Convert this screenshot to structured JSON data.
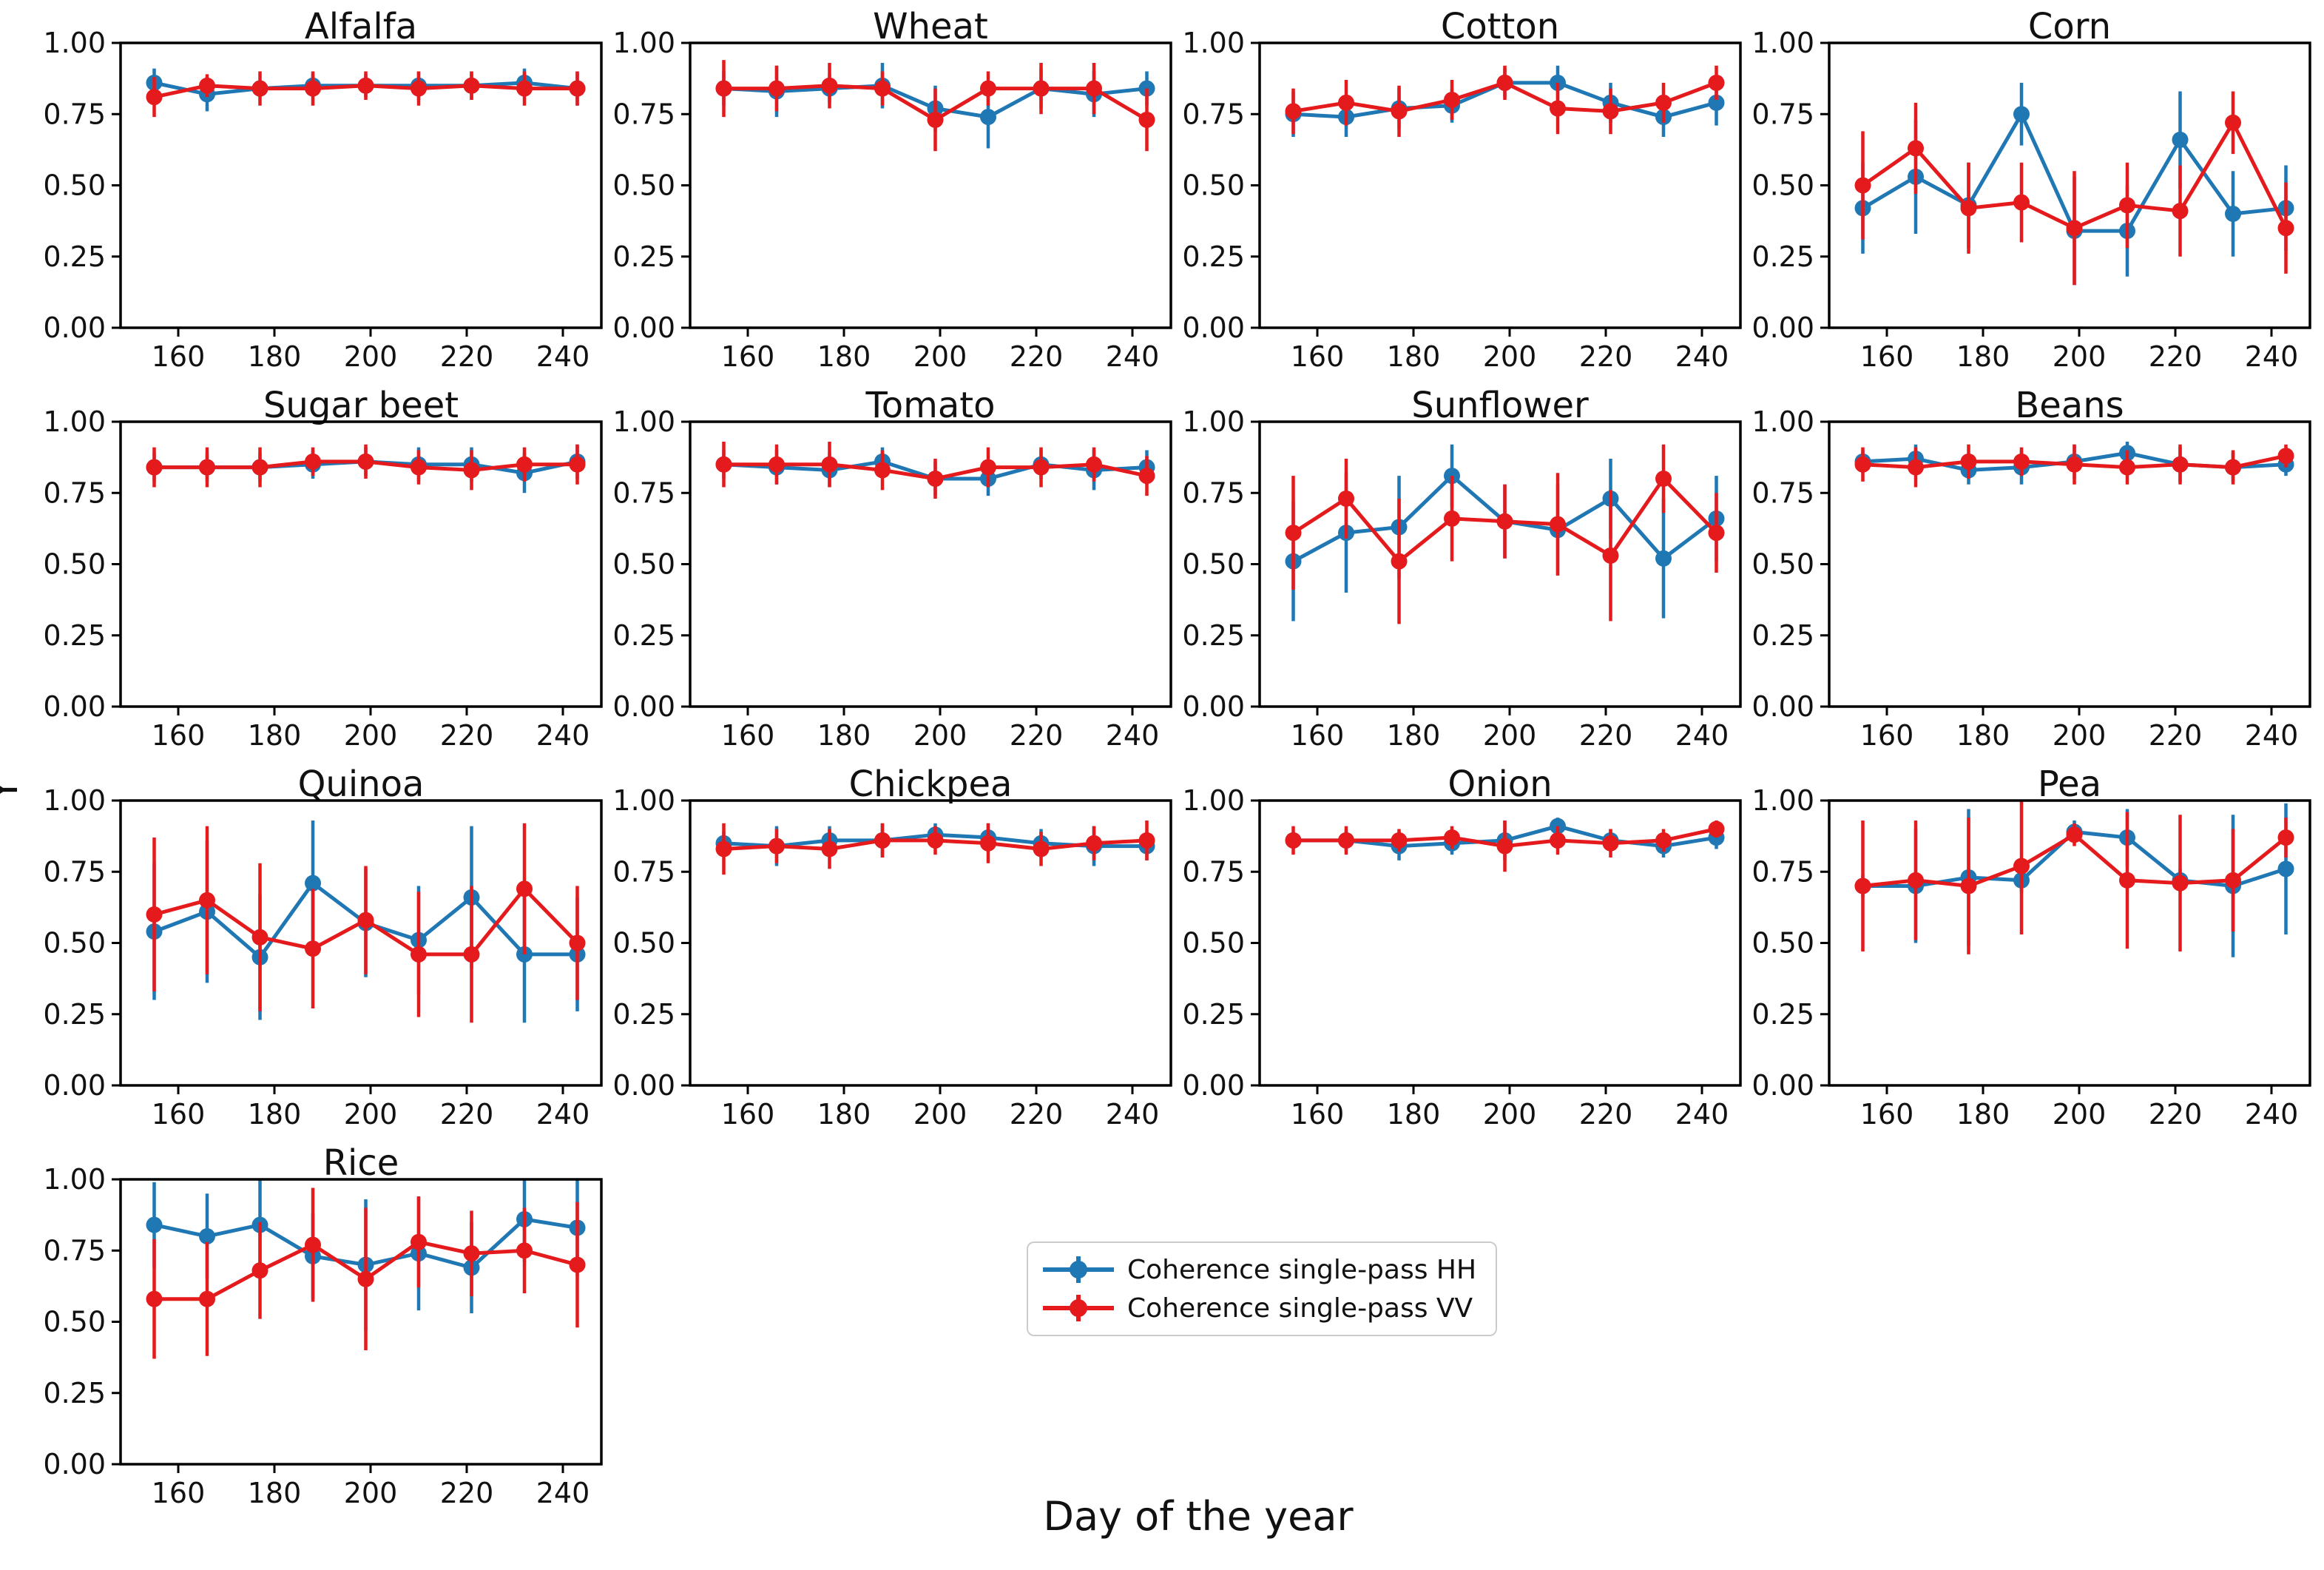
{
  "figure": {
    "xlabel": "Day of the year",
    "ylabel": "Y",
    "background": "#ffffff",
    "spine_color": "#000000",
    "legend": {
      "items": [
        {
          "key": "hh",
          "label": "Coherence single-pass HH",
          "color": "#1f77b4"
        },
        {
          "key": "vv",
          "label": "Coherence single-pass VV",
          "color": "#e41a1c"
        }
      ]
    }
  },
  "chart_data": {
    "type": "line",
    "x": [
      155,
      166,
      177,
      188,
      199,
      210,
      221,
      232,
      243
    ],
    "xlim": [
      148,
      248
    ],
    "ylim": [
      0,
      1
    ],
    "x_ticks": [
      160,
      180,
      200,
      220,
      240
    ],
    "y_ticks": [
      0.0,
      0.25,
      0.5,
      0.75,
      1.0
    ],
    "y_tick_labels": [
      "0.00",
      "0.25",
      "0.50",
      "0.75",
      "1.00"
    ],
    "grid": false,
    "legend_position": "below-figure-center",
    "series_names": [
      "Coherence single-pass HH",
      "Coherence single-pass VV"
    ],
    "subplots": [
      {
        "title": "Alfalfa",
        "hh": {
          "values": [
            0.86,
            0.82,
            0.84,
            0.85,
            0.85,
            0.85,
            0.85,
            0.86,
            0.84
          ],
          "errors": [
            0.05,
            0.06,
            0.03,
            0.04,
            0.04,
            0.05,
            0.05,
            0.05,
            0.06
          ]
        },
        "vv": {
          "values": [
            0.81,
            0.85,
            0.84,
            0.84,
            0.85,
            0.84,
            0.85,
            0.84,
            0.84
          ],
          "errors": [
            0.07,
            0.04,
            0.06,
            0.06,
            0.05,
            0.06,
            0.05,
            0.06,
            0.06
          ]
        }
      },
      {
        "title": "Wheat",
        "hh": {
          "values": [
            0.84,
            0.83,
            0.84,
            0.85,
            0.77,
            0.74,
            0.84,
            0.82,
            0.84
          ],
          "errors": [
            0.06,
            0.09,
            0.05,
            0.08,
            0.08,
            0.11,
            0.07,
            0.08,
            0.06
          ]
        },
        "vv": {
          "values": [
            0.84,
            0.84,
            0.85,
            0.84,
            0.73,
            0.84,
            0.84,
            0.84,
            0.73
          ],
          "errors": [
            0.1,
            0.08,
            0.08,
            0.06,
            0.11,
            0.06,
            0.09,
            0.09,
            0.11
          ]
        }
      },
      {
        "title": "Cotton",
        "hh": {
          "values": [
            0.75,
            0.74,
            0.77,
            0.78,
            0.86,
            0.86,
            0.79,
            0.74,
            0.79
          ],
          "errors": [
            0.08,
            0.07,
            0.07,
            0.06,
            0.05,
            0.06,
            0.07,
            0.07,
            0.08
          ]
        },
        "vv": {
          "values": [
            0.76,
            0.79,
            0.76,
            0.8,
            0.86,
            0.77,
            0.76,
            0.79,
            0.86
          ],
          "errors": [
            0.08,
            0.08,
            0.09,
            0.07,
            0.06,
            0.09,
            0.08,
            0.07,
            0.06
          ]
        }
      },
      {
        "title": "Corn",
        "hh": {
          "values": [
            0.42,
            0.53,
            0.43,
            0.75,
            0.34,
            0.34,
            0.66,
            0.4,
            0.42
          ],
          "errors": [
            0.16,
            0.2,
            0.15,
            0.11,
            0.19,
            0.16,
            0.17,
            0.15,
            0.15
          ]
        },
        "vv": {
          "values": [
            0.5,
            0.63,
            0.42,
            0.44,
            0.35,
            0.43,
            0.41,
            0.72,
            0.35
          ],
          "errors": [
            0.19,
            0.16,
            0.16,
            0.14,
            0.2,
            0.15,
            0.16,
            0.11,
            0.16
          ]
        }
      },
      {
        "title": "Sugar beet",
        "hh": {
          "values": [
            0.84,
            0.84,
            0.84,
            0.85,
            0.86,
            0.85,
            0.85,
            0.82,
            0.86
          ],
          "errors": [
            0.05,
            0.05,
            0.05,
            0.05,
            0.05,
            0.06,
            0.06,
            0.07,
            0.06
          ]
        },
        "vv": {
          "values": [
            0.84,
            0.84,
            0.84,
            0.86,
            0.86,
            0.84,
            0.83,
            0.85,
            0.85
          ],
          "errors": [
            0.07,
            0.07,
            0.07,
            0.05,
            0.06,
            0.06,
            0.07,
            0.06,
            0.07
          ]
        }
      },
      {
        "title": "Tomato",
        "hh": {
          "values": [
            0.85,
            0.84,
            0.83,
            0.86,
            0.8,
            0.8,
            0.85,
            0.83,
            0.84
          ],
          "errors": [
            0.05,
            0.06,
            0.06,
            0.05,
            0.06,
            0.06,
            0.05,
            0.07,
            0.06
          ]
        },
        "vv": {
          "values": [
            0.85,
            0.85,
            0.85,
            0.83,
            0.8,
            0.84,
            0.84,
            0.85,
            0.81
          ],
          "errors": [
            0.08,
            0.07,
            0.08,
            0.07,
            0.07,
            0.07,
            0.07,
            0.06,
            0.07
          ]
        }
      },
      {
        "title": "Sunflower",
        "hh": {
          "values": [
            0.51,
            0.61,
            0.63,
            0.81,
            0.65,
            0.62,
            0.73,
            0.52,
            0.66
          ],
          "errors": [
            0.21,
            0.21,
            0.18,
            0.11,
            0.13,
            0.16,
            0.14,
            0.21,
            0.15
          ]
        },
        "vv": {
          "values": [
            0.61,
            0.73,
            0.51,
            0.66,
            0.65,
            0.64,
            0.53,
            0.8,
            0.61
          ],
          "errors": [
            0.2,
            0.14,
            0.22,
            0.15,
            0.13,
            0.18,
            0.23,
            0.12,
            0.14
          ]
        }
      },
      {
        "title": "Beans",
        "hh": {
          "values": [
            0.86,
            0.87,
            0.83,
            0.84,
            0.86,
            0.89,
            0.85,
            0.84,
            0.85
          ],
          "errors": [
            0.04,
            0.05,
            0.05,
            0.06,
            0.06,
            0.04,
            0.06,
            0.05,
            0.04
          ]
        },
        "vv": {
          "values": [
            0.85,
            0.84,
            0.86,
            0.86,
            0.85,
            0.84,
            0.85,
            0.84,
            0.88
          ],
          "errors": [
            0.06,
            0.07,
            0.06,
            0.05,
            0.07,
            0.06,
            0.07,
            0.06,
            0.04
          ]
        }
      },
      {
        "title": "Quinoa",
        "hh": {
          "values": [
            0.54,
            0.61,
            0.45,
            0.71,
            0.57,
            0.51,
            0.66,
            0.46,
            0.46
          ],
          "errors": [
            0.24,
            0.25,
            0.22,
            0.22,
            0.19,
            0.19,
            0.25,
            0.24,
            0.2
          ]
        },
        "vv": {
          "values": [
            0.6,
            0.65,
            0.52,
            0.48,
            0.58,
            0.46,
            0.46,
            0.69,
            0.5
          ],
          "errors": [
            0.27,
            0.26,
            0.26,
            0.21,
            0.19,
            0.22,
            0.24,
            0.23,
            0.2
          ]
        }
      },
      {
        "title": "Chickpea",
        "hh": {
          "values": [
            0.85,
            0.84,
            0.86,
            0.86,
            0.88,
            0.87,
            0.85,
            0.84,
            0.84
          ],
          "errors": [
            0.04,
            0.07,
            0.05,
            0.06,
            0.04,
            0.05,
            0.05,
            0.07,
            0.05
          ]
        },
        "vv": {
          "values": [
            0.83,
            0.84,
            0.83,
            0.86,
            0.86,
            0.85,
            0.83,
            0.85,
            0.86
          ],
          "errors": [
            0.09,
            0.06,
            0.07,
            0.06,
            0.05,
            0.07,
            0.06,
            0.06,
            0.07
          ]
        }
      },
      {
        "title": "Onion",
        "hh": {
          "values": [
            0.86,
            0.86,
            0.84,
            0.85,
            0.86,
            0.91,
            0.86,
            0.84,
            0.87
          ],
          "errors": [
            0.03,
            0.04,
            0.05,
            0.04,
            0.07,
            0.03,
            0.04,
            0.04,
            0.04
          ]
        },
        "vv": {
          "values": [
            0.86,
            0.86,
            0.86,
            0.87,
            0.84,
            0.86,
            0.85,
            0.86,
            0.9
          ],
          "errors": [
            0.05,
            0.05,
            0.04,
            0.04,
            0.09,
            0.05,
            0.05,
            0.04,
            0.03
          ]
        }
      },
      {
        "title": "Pea",
        "hh": {
          "values": [
            0.7,
            0.7,
            0.73,
            0.72,
            0.89,
            0.87,
            0.72,
            0.7,
            0.76
          ],
          "errors": [
            0.04,
            0.2,
            0.24,
            0.04,
            0.04,
            0.1,
            0.04,
            0.25,
            0.23
          ]
        },
        "vv": {
          "values": [
            0.7,
            0.72,
            0.7,
            0.77,
            0.88,
            0.72,
            0.71,
            0.72,
            0.87
          ],
          "errors": [
            0.23,
            0.21,
            0.24,
            0.24,
            0.04,
            0.24,
            0.24,
            0.18,
            0.07
          ]
        }
      },
      {
        "title": "Rice",
        "hh": {
          "values": [
            0.84,
            0.8,
            0.84,
            0.73,
            0.7,
            0.74,
            0.69,
            0.86,
            0.83
          ],
          "errors": [
            0.15,
            0.15,
            0.16,
            0.15,
            0.23,
            0.2,
            0.16,
            0.15,
            0.17
          ]
        },
        "vv": {
          "values": [
            0.58,
            0.58,
            0.68,
            0.77,
            0.65,
            0.78,
            0.74,
            0.75,
            0.7
          ],
          "errors": [
            0.21,
            0.2,
            0.17,
            0.2,
            0.25,
            0.16,
            0.15,
            0.15,
            0.22
          ]
        }
      }
    ]
  }
}
